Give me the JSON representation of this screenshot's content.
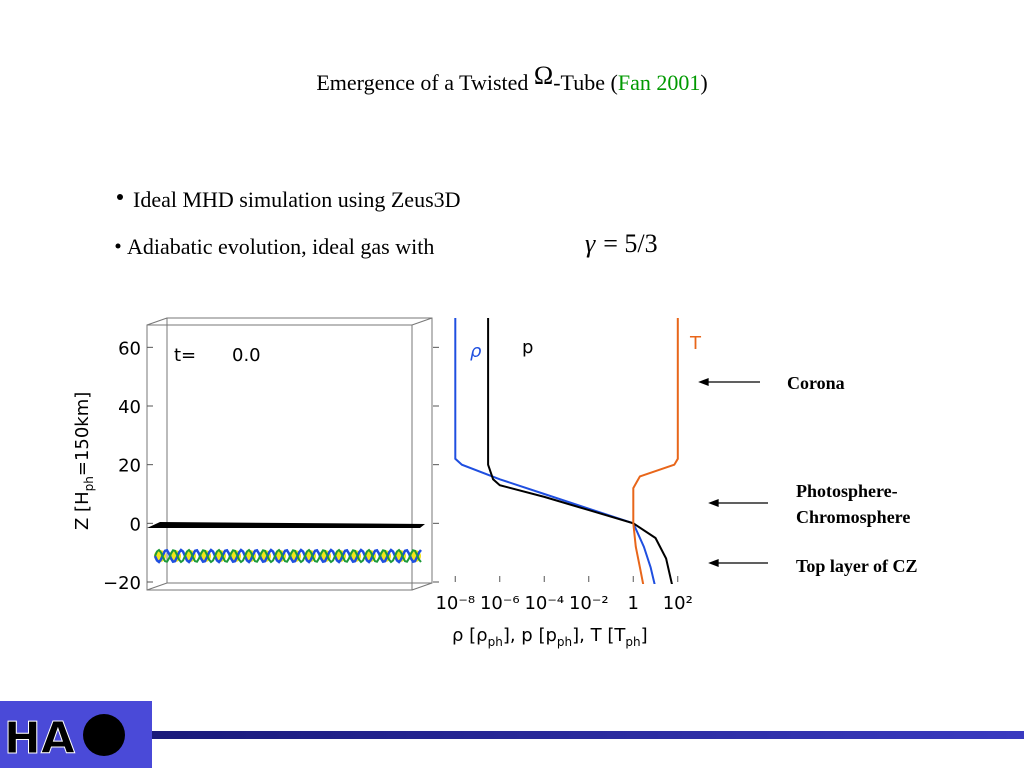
{
  "title": {
    "prefix": "Emergence of a Twisted ",
    "symbol": "Ω",
    "suffix": "-Tube (",
    "citation": "Fan 2001",
    "close": ")"
  },
  "bullets": [
    "Ideal MHD simulation using Zeus3D",
    "Adiabatic evolution, ideal gas with"
  ],
  "formula": {
    "lhs": "γ",
    "rhs": "= 5/3"
  },
  "left_panel": {
    "time_label": "t=",
    "time_value": "0.0"
  },
  "chart_data": {
    "type": "line",
    "xscale": "log",
    "xlim": [
      1e-09,
      1000
    ],
    "xticks": [
      {
        "value": 1e-08,
        "label": "10⁻⁸"
      },
      {
        "value": 1e-06,
        "label": "10⁻⁶"
      },
      {
        "value": 0.0001,
        "label": "10⁻⁴"
      },
      {
        "value": 0.01,
        "label": "10⁻²"
      },
      1,
      {
        "value": 100,
        "label": "10²"
      }
    ],
    "ylim": [
      -20,
      70
    ],
    "yticks": [
      {
        "value": -20,
        "label": "−20"
      },
      0,
      20,
      40,
      60
    ],
    "ylabel_parts": [
      "Z [H",
      "ph",
      "=150km]"
    ],
    "xlabel_parts": [
      "ρ [ρ",
      "ph",
      "], p [p",
      "ph",
      "], T [T",
      "ph",
      "]"
    ],
    "series": [
      {
        "name": "ρ",
        "color": "#1f4fe0",
        "x": [
          1e-08,
          1e-08,
          2e-08,
          1e-06,
          0.0001,
          0.01,
          1,
          3,
          6,
          10
        ],
        "y": [
          70,
          22,
          20,
          15,
          10,
          5,
          0,
          -8,
          -15,
          -22
        ]
      },
      {
        "name": "p",
        "color": "#000000",
        "x": [
          3e-07,
          3e-07,
          5e-07,
          1e-06,
          0.0001,
          0.01,
          1,
          10,
          30,
          60
        ],
        "y": [
          70,
          20,
          15,
          13,
          9,
          4.5,
          0,
          -5,
          -12,
          -22
        ]
      },
      {
        "name": "T",
        "color": "#e8661a",
        "x": [
          100,
          100,
          70,
          2,
          1,
          1,
          1.3,
          2,
          3
        ],
        "y": [
          70,
          22,
          20,
          16,
          12,
          0,
          -8,
          -15,
          -22
        ]
      }
    ]
  },
  "annotations": [
    "Corona",
    "Photosphere-",
    "Chromosphere",
    "Top layer of CZ"
  ],
  "logo": {
    "text": "HA"
  }
}
